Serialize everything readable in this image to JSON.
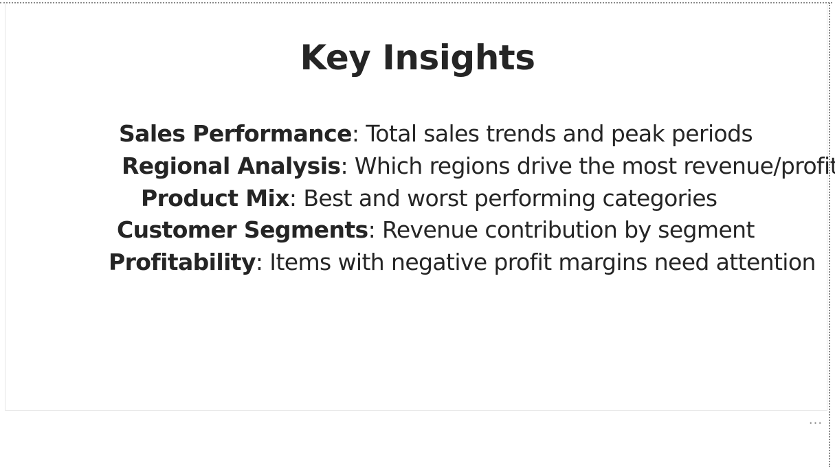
{
  "card": {
    "title": "Key Insights",
    "insights": [
      {
        "term": "Sales Performance",
        "separator": ":",
        "text": " Total sales trends and peak periods"
      },
      {
        "term": "Regional Analysis",
        "separator": ":",
        "text": " Which regions drive the most revenue/profit"
      },
      {
        "term": "Product Mix",
        "separator": ":",
        "text": " Best and worst performing categories"
      },
      {
        "term": "Customer Segments",
        "separator": ":",
        "text": " Revenue contribution by segment"
      },
      {
        "term": "Profitability",
        "separator": ":",
        "text": " Items with negative profit margins need attention"
      }
    ]
  },
  "toolbar": {
    "more_options_icon": "more-options-icon",
    "more_options_glyph": "···"
  }
}
